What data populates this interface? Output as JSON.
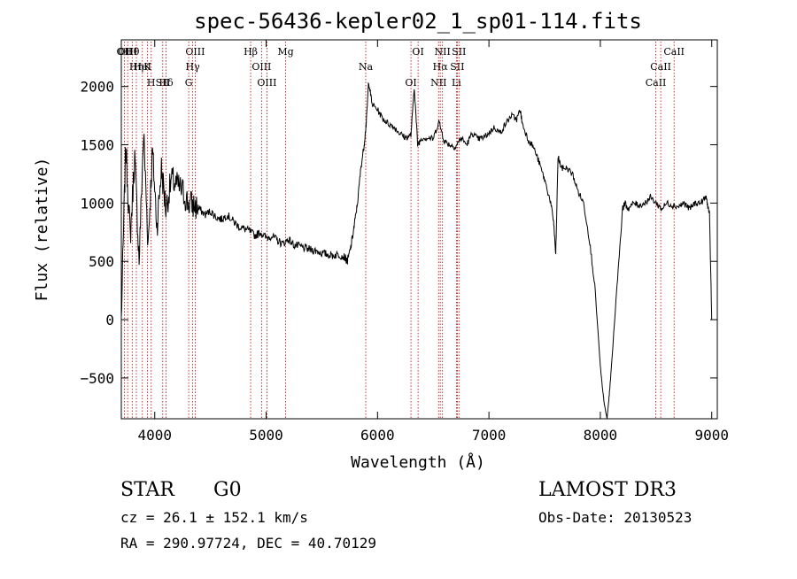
{
  "chart_data": {
    "type": "line",
    "title": "spec-56436-kepler02_1_sp01-114.fits",
    "xlabel": "Wavelength (Å)",
    "ylabel": "Flux (relative)",
    "xlim": [
      3700,
      9050
    ],
    "ylim": [
      -850,
      2400
    ],
    "x_ticks": [
      4000,
      5000,
      6000,
      7000,
      8000,
      9000
    ],
    "y_ticks": [
      -500,
      0,
      500,
      1000,
      1500,
      2000
    ],
    "grid": false,
    "line_color": "#000000",
    "marker_color": "#c00000",
    "series": [
      {
        "name": "flux",
        "x": [
          3700,
          3740,
          3780,
          3820,
          3860,
          3900,
          3940,
          3980,
          4020,
          4060,
          4100,
          4150,
          4200,
          4250,
          4300,
          4350,
          4400,
          4450,
          4500,
          4550,
          4600,
          4650,
          4700,
          4750,
          4800,
          4850,
          4900,
          4950,
          5000,
          5050,
          5100,
          5150,
          5200,
          5250,
          5300,
          5350,
          5400,
          5450,
          5500,
          5550,
          5600,
          5650,
          5700,
          5730,
          5760,
          5790,
          5820,
          5850,
          5880,
          5900,
          5920,
          5950,
          6000,
          6050,
          6100,
          6150,
          6200,
          6250,
          6300,
          6330,
          6360,
          6400,
          6450,
          6500,
          6550,
          6600,
          6650,
          6700,
          6750,
          6800,
          6850,
          6900,
          6950,
          7000,
          7050,
          7100,
          7150,
          7200,
          7250,
          7280,
          7300,
          7350,
          7400,
          7450,
          7500,
          7550,
          7580,
          7600,
          7620,
          7650,
          7700,
          7750,
          7800,
          7850,
          7900,
          7950,
          8000,
          8020,
          8040,
          8060,
          8080,
          8100,
          8150,
          8200,
          8220,
          8250,
          8300,
          8350,
          8400,
          8450,
          8500,
          8550,
          8600,
          8650,
          8700,
          8750,
          8800,
          8850,
          8900,
          8950,
          8980,
          9000
        ],
        "y": [
          0,
          1500,
          700,
          1400,
          500,
          1600,
          650,
          1450,
          800,
          1300,
          950,
          1200,
          1150,
          1100,
          1000,
          980,
          950,
          900,
          930,
          880,
          860,
          900,
          850,
          800,
          780,
          760,
          720,
          750,
          700,
          720,
          680,
          650,
          690,
          640,
          630,
          610,
          600,
          590,
          570,
          560,
          550,
          560,
          540,
          500,
          620,
          800,
          1000,
          1300,
          1500,
          1700,
          2050,
          1850,
          1800,
          1720,
          1680,
          1650,
          1600,
          1560,
          1580,
          2000,
          1500,
          1560,
          1560,
          1550,
          1700,
          1530,
          1500,
          1480,
          1560,
          1500,
          1600,
          1550,
          1560,
          1600,
          1650,
          1600,
          1680,
          1750,
          1720,
          1800,
          1680,
          1550,
          1480,
          1350,
          1200,
          1020,
          850,
          550,
          1400,
          1300,
          1300,
          1250,
          1100,
          1000,
          700,
          300,
          -400,
          -600,
          -750,
          -850,
          -650,
          -400,
          300,
          950,
          1000,
          950,
          1000,
          980,
          1000,
          1050,
          1000,
          950,
          1000,
          980,
          970,
          1000,
          950,
          1000,
          1000,
          1050,
          900,
          0
        ],
        "values_note": "approximate trace"
      }
    ],
    "line_markers": [
      {
        "label": "Hθ",
        "wavelength": 3798
      },
      {
        "label": "K",
        "wavelength": 3934
      },
      {
        "label": "Hδ",
        "wavelength": 4102
      },
      {
        "label": "OII",
        "wavelength": 3727
      },
      {
        "label": "HeI",
        "wavelength": 3889
      },
      {
        "label": "SII",
        "wavelength": 4072
      },
      {
        "label": "OIII",
        "wavelength": 3757
      },
      {
        "label": "Hη",
        "wavelength": 3835
      },
      {
        "label": "H",
        "wavelength": 3968
      },
      {
        "label": "OIII",
        "wavelength": 4363
      },
      {
        "label": "Hγ",
        "wavelength": 4341
      },
      {
        "label": "G",
        "wavelength": 4305
      },
      {
        "label": "Hβ",
        "wavelength": 4861
      },
      {
        "label": "OIII",
        "wavelength": 4959
      },
      {
        "label": "OIII",
        "wavelength": 5007
      },
      {
        "label": "Mg",
        "wavelength": 5175
      },
      {
        "label": "Na",
        "wavelength": 5894
      },
      {
        "label": "OI",
        "wavelength": 6300
      },
      {
        "label": "OI",
        "wavelength": 6364
      },
      {
        "label": "Hα",
        "wavelength": 6563
      },
      {
        "label": "NII",
        "wavelength": 6548
      },
      {
        "label": "NII",
        "wavelength": 6583
      },
      {
        "label": "SII",
        "wavelength": 6716
      },
      {
        "label": "Li",
        "wavelength": 6708
      },
      {
        "label": "SII",
        "wavelength": 6731
      },
      {
        "label": "CaII",
        "wavelength": 8542
      },
      {
        "label": "CaII",
        "wavelength": 8498
      },
      {
        "label": "CaII",
        "wavelength": 8662
      }
    ]
  },
  "info": {
    "class_label": "STAR",
    "subclass": "G0",
    "survey": "LAMOST DR3",
    "velocity": "cz = 26.1 ± 152.1 km/s",
    "obs_date": "Obs-Date: 20130523",
    "coords": "RA = 290.97724, DEC =  40.70129"
  }
}
